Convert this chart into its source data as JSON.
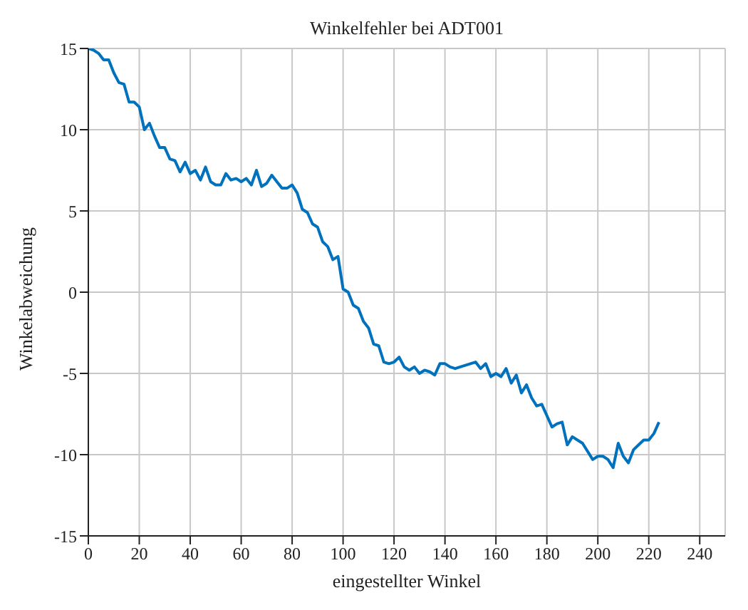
{
  "chart_data": {
    "type": "line",
    "title": "Winkelfehler bei ADT001",
    "xlabel": "eingestellter Winkel",
    "ylabel": "Winkelabweichung",
    "x": [
      0,
      2,
      4,
      6,
      8,
      10,
      12,
      14,
      16,
      18,
      20,
      22,
      24,
      26,
      28,
      30,
      32,
      34,
      36,
      38,
      40,
      42,
      44,
      46,
      48,
      50,
      52,
      54,
      56,
      58,
      60,
      62,
      64,
      66,
      68,
      70,
      72,
      74,
      76,
      78,
      80,
      82,
      84,
      86,
      88,
      90,
      92,
      94,
      96,
      98,
      100,
      102,
      104,
      106,
      108,
      110,
      112,
      114,
      116,
      118,
      120,
      122,
      124,
      126,
      128,
      130,
      132,
      134,
      136,
      138,
      140,
      142,
      144,
      146,
      148,
      150,
      152,
      154,
      156,
      158,
      160,
      162,
      164,
      166,
      168,
      170,
      172,
      174,
      176,
      178,
      180,
      182,
      184,
      186,
      188,
      190,
      192,
      194,
      196,
      198,
      200,
      202,
      204,
      206,
      208,
      210,
      212,
      214,
      216,
      218,
      220,
      222,
      224
    ],
    "series": [
      {
        "color": "#0072bd",
        "values": [
          15.0,
          14.9,
          14.7,
          14.3,
          14.3,
          13.5,
          12.9,
          12.8,
          11.7,
          11.7,
          11.4,
          10.0,
          10.4,
          9.6,
          8.9,
          8.9,
          8.2,
          8.1,
          7.4,
          8.0,
          7.3,
          7.5,
          6.9,
          7.7,
          6.8,
          6.6,
          6.6,
          7.3,
          6.9,
          7.0,
          6.8,
          7.0,
          6.6,
          7.5,
          6.5,
          6.7,
          7.2,
          6.8,
          6.4,
          6.4,
          6.6,
          6.1,
          5.1,
          4.9,
          4.2,
          4.0,
          3.1,
          2.8,
          2.0,
          2.2,
          0.2,
          0.0,
          -0.8,
          -1.0,
          -1.8,
          -2.2,
          -3.2,
          -3.3,
          -4.3,
          -4.4,
          -4.3,
          -4.0,
          -4.6,
          -4.8,
          -4.6,
          -5.0,
          -4.8,
          -4.9,
          -5.1,
          -4.4,
          -4.4,
          -4.6,
          -4.7,
          -4.6,
          -4.5,
          -4.4,
          -4.3,
          -4.7,
          -4.4,
          -5.2,
          -5.0,
          -5.2,
          -4.7,
          -5.6,
          -5.1,
          -6.2,
          -5.7,
          -6.5,
          -7.0,
          -6.9,
          -7.6,
          -8.3,
          -8.1,
          -8.0,
          -9.4,
          -8.9,
          -9.1,
          -9.3,
          -9.8,
          -10.3,
          -10.1,
          -10.1,
          -10.3,
          -10.8,
          -9.3,
          -10.1,
          -10.5,
          -9.7,
          -9.4,
          -9.1,
          -9.1,
          -8.7,
          -8.0
        ]
      }
    ],
    "xlim": [
      0,
      250
    ],
    "xticks": [
      0,
      20,
      40,
      60,
      80,
      100,
      120,
      140,
      160,
      180,
      200,
      220,
      240
    ],
    "ylim": [
      -15,
      15
    ],
    "yticks": [
      -15,
      -10,
      -5,
      0,
      5,
      10,
      15
    ],
    "grid": true,
    "marker": "none",
    "line_style": "solid"
  }
}
